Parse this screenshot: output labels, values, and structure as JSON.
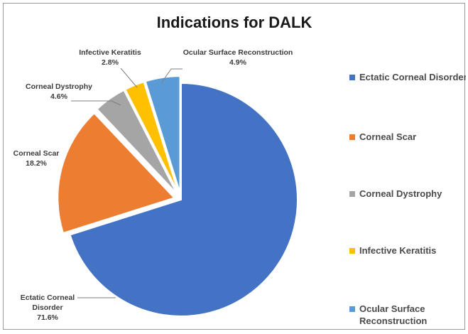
{
  "chart_data": {
    "type": "pie",
    "title": "Indications for DALK",
    "legend_position": "right",
    "slices": [
      {
        "label": "Ectatic Corneal Disorder",
        "value": 71.6,
        "pct_label": "71.6%",
        "color": "#4472c4",
        "data_label_lines": [
          "Ectatic Corneal",
          "Disorder",
          "71.6%"
        ],
        "legend_lines": [
          "Ectatic Corneal Disorder"
        ],
        "exploded": false
      },
      {
        "label": "Corneal Scar",
        "value": 18.2,
        "pct_label": "18.2%",
        "color": "#ed7d31",
        "data_label_lines": [
          "Corneal Scar",
          "18.2%"
        ],
        "legend_lines": [
          "Corneal Scar"
        ],
        "exploded": true
      },
      {
        "label": "Corneal Dystrophy",
        "value": 4.6,
        "pct_label": "4.6%",
        "color": "#a5a5a5",
        "data_label_lines": [
          "Corneal Dystrophy",
          "4.6%"
        ],
        "legend_lines": [
          "Corneal Dystrophy"
        ],
        "exploded": true
      },
      {
        "label": "Infective Keratitis",
        "value": 2.8,
        "pct_label": "2.8%",
        "color": "#ffc000",
        "data_label_lines": [
          "Infective Keratitis",
          "2.8%"
        ],
        "legend_lines": [
          "Infective Keratitis"
        ],
        "exploded": true
      },
      {
        "label": "Ocular Surface Reconstruction",
        "value": 4.9,
        "pct_label": "4.9%",
        "color": "#5b9bd5",
        "data_label_lines": [
          "Ocular Surface Reconstruction",
          "4.9%"
        ],
        "legend_lines": [
          "Ocular Surface",
          "Reconstruction"
        ],
        "exploded": true
      }
    ]
  }
}
